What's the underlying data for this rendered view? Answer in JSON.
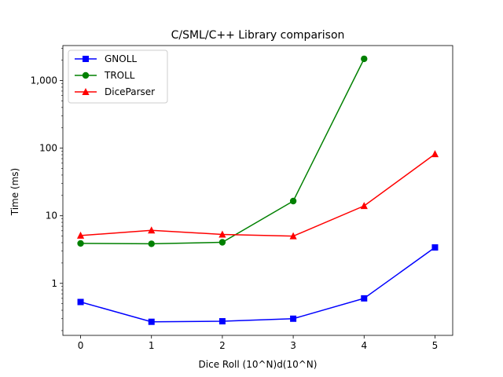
{
  "chart_data": {
    "type": "line",
    "title": "C/SML/C++ Library comparison",
    "xlabel": "Dice Roll (10^N)d(10^N)",
    "ylabel": "Time (ms)",
    "yscale": "log",
    "x": [
      0,
      1,
      2,
      3,
      4,
      5
    ],
    "xlim": [
      -0.25,
      5.25
    ],
    "ylim": [
      0.17,
      3300
    ],
    "xticks": [
      0,
      1,
      2,
      3,
      4,
      5
    ],
    "yticks": [
      {
        "value": 1,
        "label": "1"
      },
      {
        "value": 10,
        "label": "10"
      },
      {
        "value": 100,
        "label": "100"
      },
      {
        "value": 1000,
        "label": "1,000"
      }
    ],
    "grid": false,
    "legend": "top-left",
    "series": [
      {
        "name": "GNOLL",
        "color": "#0000ff",
        "marker": "square",
        "x": [
          0,
          1,
          2,
          3,
          4,
          5
        ],
        "values": [
          0.53,
          0.27,
          0.275,
          0.3,
          0.6,
          3.4
        ]
      },
      {
        "name": "TROLL",
        "color": "#008000",
        "marker": "circle",
        "x": [
          0,
          1,
          2,
          3,
          4
        ],
        "values": [
          3.9,
          3.85,
          4.05,
          16.5,
          2100
        ]
      },
      {
        "name": "DiceParser",
        "color": "#ff0000",
        "marker": "triangle",
        "x": [
          0,
          1,
          2,
          3,
          4,
          5
        ],
        "values": [
          5.1,
          6.1,
          5.3,
          5.0,
          14.0,
          82
        ]
      }
    ]
  }
}
